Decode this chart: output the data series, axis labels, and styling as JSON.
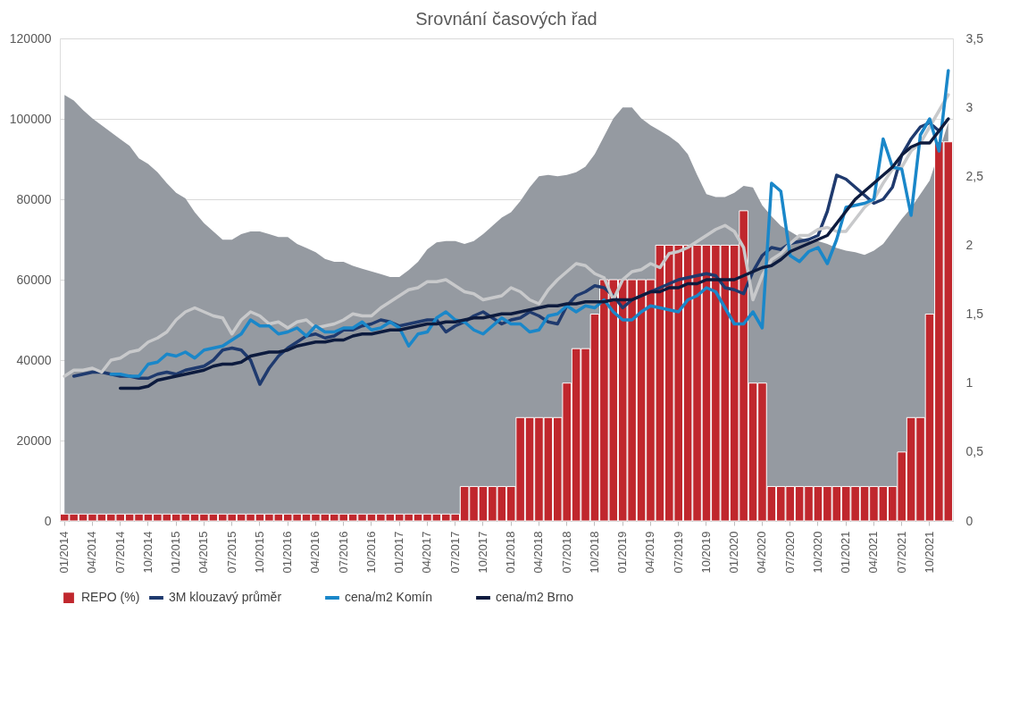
{
  "chart_data": {
    "type": "line",
    "title": "Srovnání časových řad",
    "categories": [
      "01/2014",
      null,
      null,
      "04/2014",
      null,
      null,
      "07/2014",
      null,
      null,
      "10/2014",
      null,
      null,
      "01/2015",
      null,
      null,
      "04/2015",
      null,
      null,
      "07/2015",
      null,
      null,
      "10/2015",
      null,
      null,
      "01/2016",
      null,
      null,
      "04/2016",
      null,
      null,
      "07/2016",
      null,
      null,
      "10/2016",
      null,
      null,
      "01/2017",
      null,
      null,
      "04/2017",
      null,
      null,
      "07/2017",
      null,
      null,
      "10/2017",
      null,
      null,
      "01/2018",
      null,
      null,
      "04/2018",
      null,
      null,
      "07/2018",
      null,
      null,
      "10/2018",
      null,
      null,
      "01/2019",
      null,
      null,
      "04/2019",
      null,
      null,
      "07/2019",
      null,
      null,
      "10/2019",
      null,
      null,
      "01/2020",
      null,
      null,
      "04/2020",
      null,
      null,
      "07/2020",
      null,
      null,
      "10/2020",
      null,
      null,
      "01/2021",
      null,
      null,
      "04/2021",
      null,
      null,
      "07/2021",
      null,
      null,
      "10/2021",
      null,
      null
    ],
    "ylim": [
      0,
      120000
    ],
    "yticks": [
      0,
      20000,
      40000,
      60000,
      80000,
      100000,
      120000
    ],
    "y2lim": [
      0,
      3.5
    ],
    "y2ticks": [
      0,
      {
        "value": 0.5,
        "label": "0,5"
      },
      1,
      {
        "value": 1.5,
        "label": "1,5"
      },
      2,
      {
        "value": 2.5,
        "label": "2,5"
      },
      3,
      {
        "value": 3.5,
        "label": "3,5"
      }
    ],
    "grid": "y",
    "legend": "bottom",
    "series": [
      {
        "type": "area",
        "axis": "y2",
        "color": "#959aa1",
        "values": [
          3.09,
          3.05,
          2.98,
          2.92,
          2.87,
          2.82,
          2.77,
          2.72,
          2.63,
          2.59,
          2.53,
          2.45,
          2.38,
          2.34,
          2.24,
          2.16,
          2.1,
          2.04,
          2.04,
          2.08,
          2.1,
          2.1,
          2.08,
          2.06,
          2.06,
          2.01,
          1.98,
          1.95,
          1.9,
          1.88,
          1.88,
          1.85,
          1.83,
          1.81,
          1.79,
          1.77,
          1.77,
          1.82,
          1.88,
          1.97,
          2.02,
          2.03,
          2.03,
          2.01,
          2.03,
          2.08,
          2.14,
          2.2,
          2.24,
          2.32,
          2.42,
          2.5,
          2.51,
          2.5,
          2.51,
          2.53,
          2.57,
          2.66,
          2.79,
          2.92,
          3.0,
          3.0,
          2.92,
          2.87,
          2.83,
          2.79,
          2.74,
          2.66,
          2.51,
          2.37,
          2.35,
          2.35,
          2.38,
          2.43,
          2.42,
          2.29,
          2.21,
          2.14,
          2.1,
          2.06,
          2.03,
          2.03,
          2.01,
          1.98,
          1.96,
          1.95,
          1.93,
          1.96,
          2.01,
          2.1,
          2.19,
          2.27,
          2.37,
          2.47,
          null,
          2.89
        ]
      },
      {
        "type": "bar",
        "axis": "y2",
        "name": "REPO (%)",
        "color": "#c0272d",
        "values": [
          0.05,
          0.05,
          0.05,
          0.05,
          0.05,
          0.05,
          0.05,
          0.05,
          0.05,
          0.05,
          0.05,
          0.05,
          0.05,
          0.05,
          0.05,
          0.05,
          0.05,
          0.05,
          0.05,
          0.05,
          0.05,
          0.05,
          0.05,
          0.05,
          0.05,
          0.05,
          0.05,
          0.05,
          0.05,
          0.05,
          0.05,
          0.05,
          0.05,
          0.05,
          0.05,
          0.05,
          0.05,
          0.05,
          0.05,
          0.05,
          0.05,
          0.05,
          0.05,
          0.25,
          0.25,
          0.25,
          0.25,
          0.25,
          0.25,
          0.75,
          0.75,
          0.75,
          0.75,
          0.75,
          1.0,
          1.25,
          1.25,
          1.5,
          1.75,
          1.75,
          1.75,
          1.75,
          1.75,
          1.75,
          2.0,
          2.0,
          2.0,
          2.0,
          2.0,
          2.0,
          2.0,
          2.0,
          2.0,
          2.25,
          1.0,
          1.0,
          0.25,
          0.25,
          0.25,
          0.25,
          0.25,
          0.25,
          0.25,
          0.25,
          0.25,
          0.25,
          0.25,
          0.25,
          0.25,
          0.25,
          0.5,
          0.75,
          0.75,
          1.5,
          2.75,
          2.75
        ]
      },
      {
        "axis": "y",
        "name": "3M klouzavý průměr",
        "color": "#1f3a6e",
        "values": [
          null,
          36000,
          36500,
          37000,
          37000,
          36500,
          36000,
          36000,
          35500,
          35500,
          36500,
          37000,
          36500,
          37500,
          38000,
          38500,
          40000,
          42500,
          43000,
          42500,
          40000,
          34000,
          38000,
          41000,
          43000,
          44500,
          46000,
          46500,
          45500,
          46000,
          47500,
          47500,
          48500,
          49000,
          50000,
          49500,
          48500,
          49000,
          49500,
          50000,
          50000,
          47000,
          48500,
          49500,
          51000,
          52000,
          50500,
          49000,
          50000,
          50500,
          52000,
          51000,
          49500,
          49000,
          53500,
          56000,
          57000,
          58500,
          58000,
          56000,
          53000,
          55000,
          56000,
          57000,
          58000,
          59000,
          60000,
          60500,
          61000,
          61500,
          61000,
          58000,
          57500,
          56500,
          62000,
          66000,
          68000,
          67500,
          69000,
          69500,
          70000,
          71000,
          77000,
          86000,
          85000,
          83000,
          81000,
          79000,
          80000,
          83000,
          91000,
          95000,
          98000,
          99000,
          97000,
          null
        ]
      },
      {
        "axis": "y",
        "color": "#c8c9cb",
        "values": [
          36000,
          37500,
          37500,
          38000,
          37000,
          40000,
          40500,
          42000,
          42500,
          44500,
          45500,
          47000,
          50000,
          52000,
          53000,
          52000,
          51000,
          50500,
          46500,
          50000,
          52000,
          51000,
          49000,
          49500,
          48000,
          49500,
          50000,
          48000,
          48500,
          49000,
          50000,
          51500,
          51000,
          51000,
          53000,
          54500,
          56000,
          57500,
          58000,
          59500,
          59500,
          60000,
          58500,
          57000,
          56500,
          55000,
          55500,
          56000,
          58000,
          57000,
          55000,
          54000,
          57500,
          60000,
          62000,
          64000,
          63500,
          61500,
          60500,
          55000,
          60000,
          62000,
          62500,
          64000,
          63000,
          66500,
          67000,
          68000,
          69500,
          71000,
          72500,
          73500,
          72000,
          68000,
          55000,
          61000,
          65000,
          66500,
          69000,
          71000,
          71000,
          72500,
          73000,
          72000,
          72000,
          75000,
          78000,
          80000,
          84000,
          87500,
          88000,
          92000,
          94000,
          98000,
          102000,
          106000
        ]
      },
      {
        "axis": "y",
        "name": "cena/m2 Komín",
        "color": "#1a87c9",
        "values": [
          null,
          null,
          null,
          null,
          null,
          36500,
          36500,
          36000,
          36000,
          39000,
          39500,
          41500,
          41000,
          42000,
          40500,
          42500,
          43000,
          43500,
          45000,
          46500,
          50000,
          48500,
          48500,
          46500,
          47000,
          48000,
          46000,
          48500,
          47000,
          47000,
          48000,
          48000,
          49500,
          47500,
          48000,
          49500,
          48000,
          43500,
          46500,
          47000,
          50500,
          52000,
          50000,
          49500,
          47500,
          46500,
          48500,
          50500,
          49000,
          49000,
          47000,
          47500,
          51000,
          51500,
          53500,
          52000,
          53500,
          53000,
          55000,
          52000,
          50000,
          50000,
          52000,
          53500,
          53000,
          52500,
          52000,
          55000,
          56000,
          58000,
          57000,
          53000,
          49000,
          49000,
          52000,
          48000,
          84000,
          82000,
          66000,
          64500,
          67000,
          68000,
          64000,
          70000,
          78000,
          78500,
          79000,
          80000,
          95000,
          88000,
          87500,
          76000,
          96000,
          100000,
          92000,
          112000
        ]
      },
      {
        "axis": "y",
        "name": "cena/m2 Brno",
        "color": "#0d1b3e",
        "values": [
          null,
          null,
          null,
          null,
          null,
          null,
          33000,
          33000,
          33000,
          33500,
          35000,
          35500,
          36000,
          36500,
          37000,
          37500,
          38500,
          39000,
          39000,
          39500,
          41000,
          41500,
          42000,
          42000,
          42500,
          43500,
          44000,
          44500,
          44500,
          45000,
          45000,
          46000,
          46500,
          46500,
          47000,
          47500,
          47500,
          48000,
          48500,
          49000,
          49000,
          49500,
          49500,
          50000,
          50500,
          50500,
          51000,
          51500,
          51500,
          52000,
          52500,
          53000,
          53500,
          53500,
          54000,
          54000,
          54500,
          54500,
          54500,
          55000,
          55000,
          55000,
          56000,
          57000,
          57000,
          58000,
          58000,
          59000,
          59000,
          60000,
          60000,
          60000,
          60000,
          61000,
          62000,
          63000,
          63500,
          65000,
          67000,
          68000,
          69000,
          70000,
          71000,
          74000,
          77000,
          80000,
          82000,
          84000,
          86000,
          88000,
          91000,
          93000,
          94000,
          94000,
          97000,
          100000
        ]
      }
    ]
  }
}
